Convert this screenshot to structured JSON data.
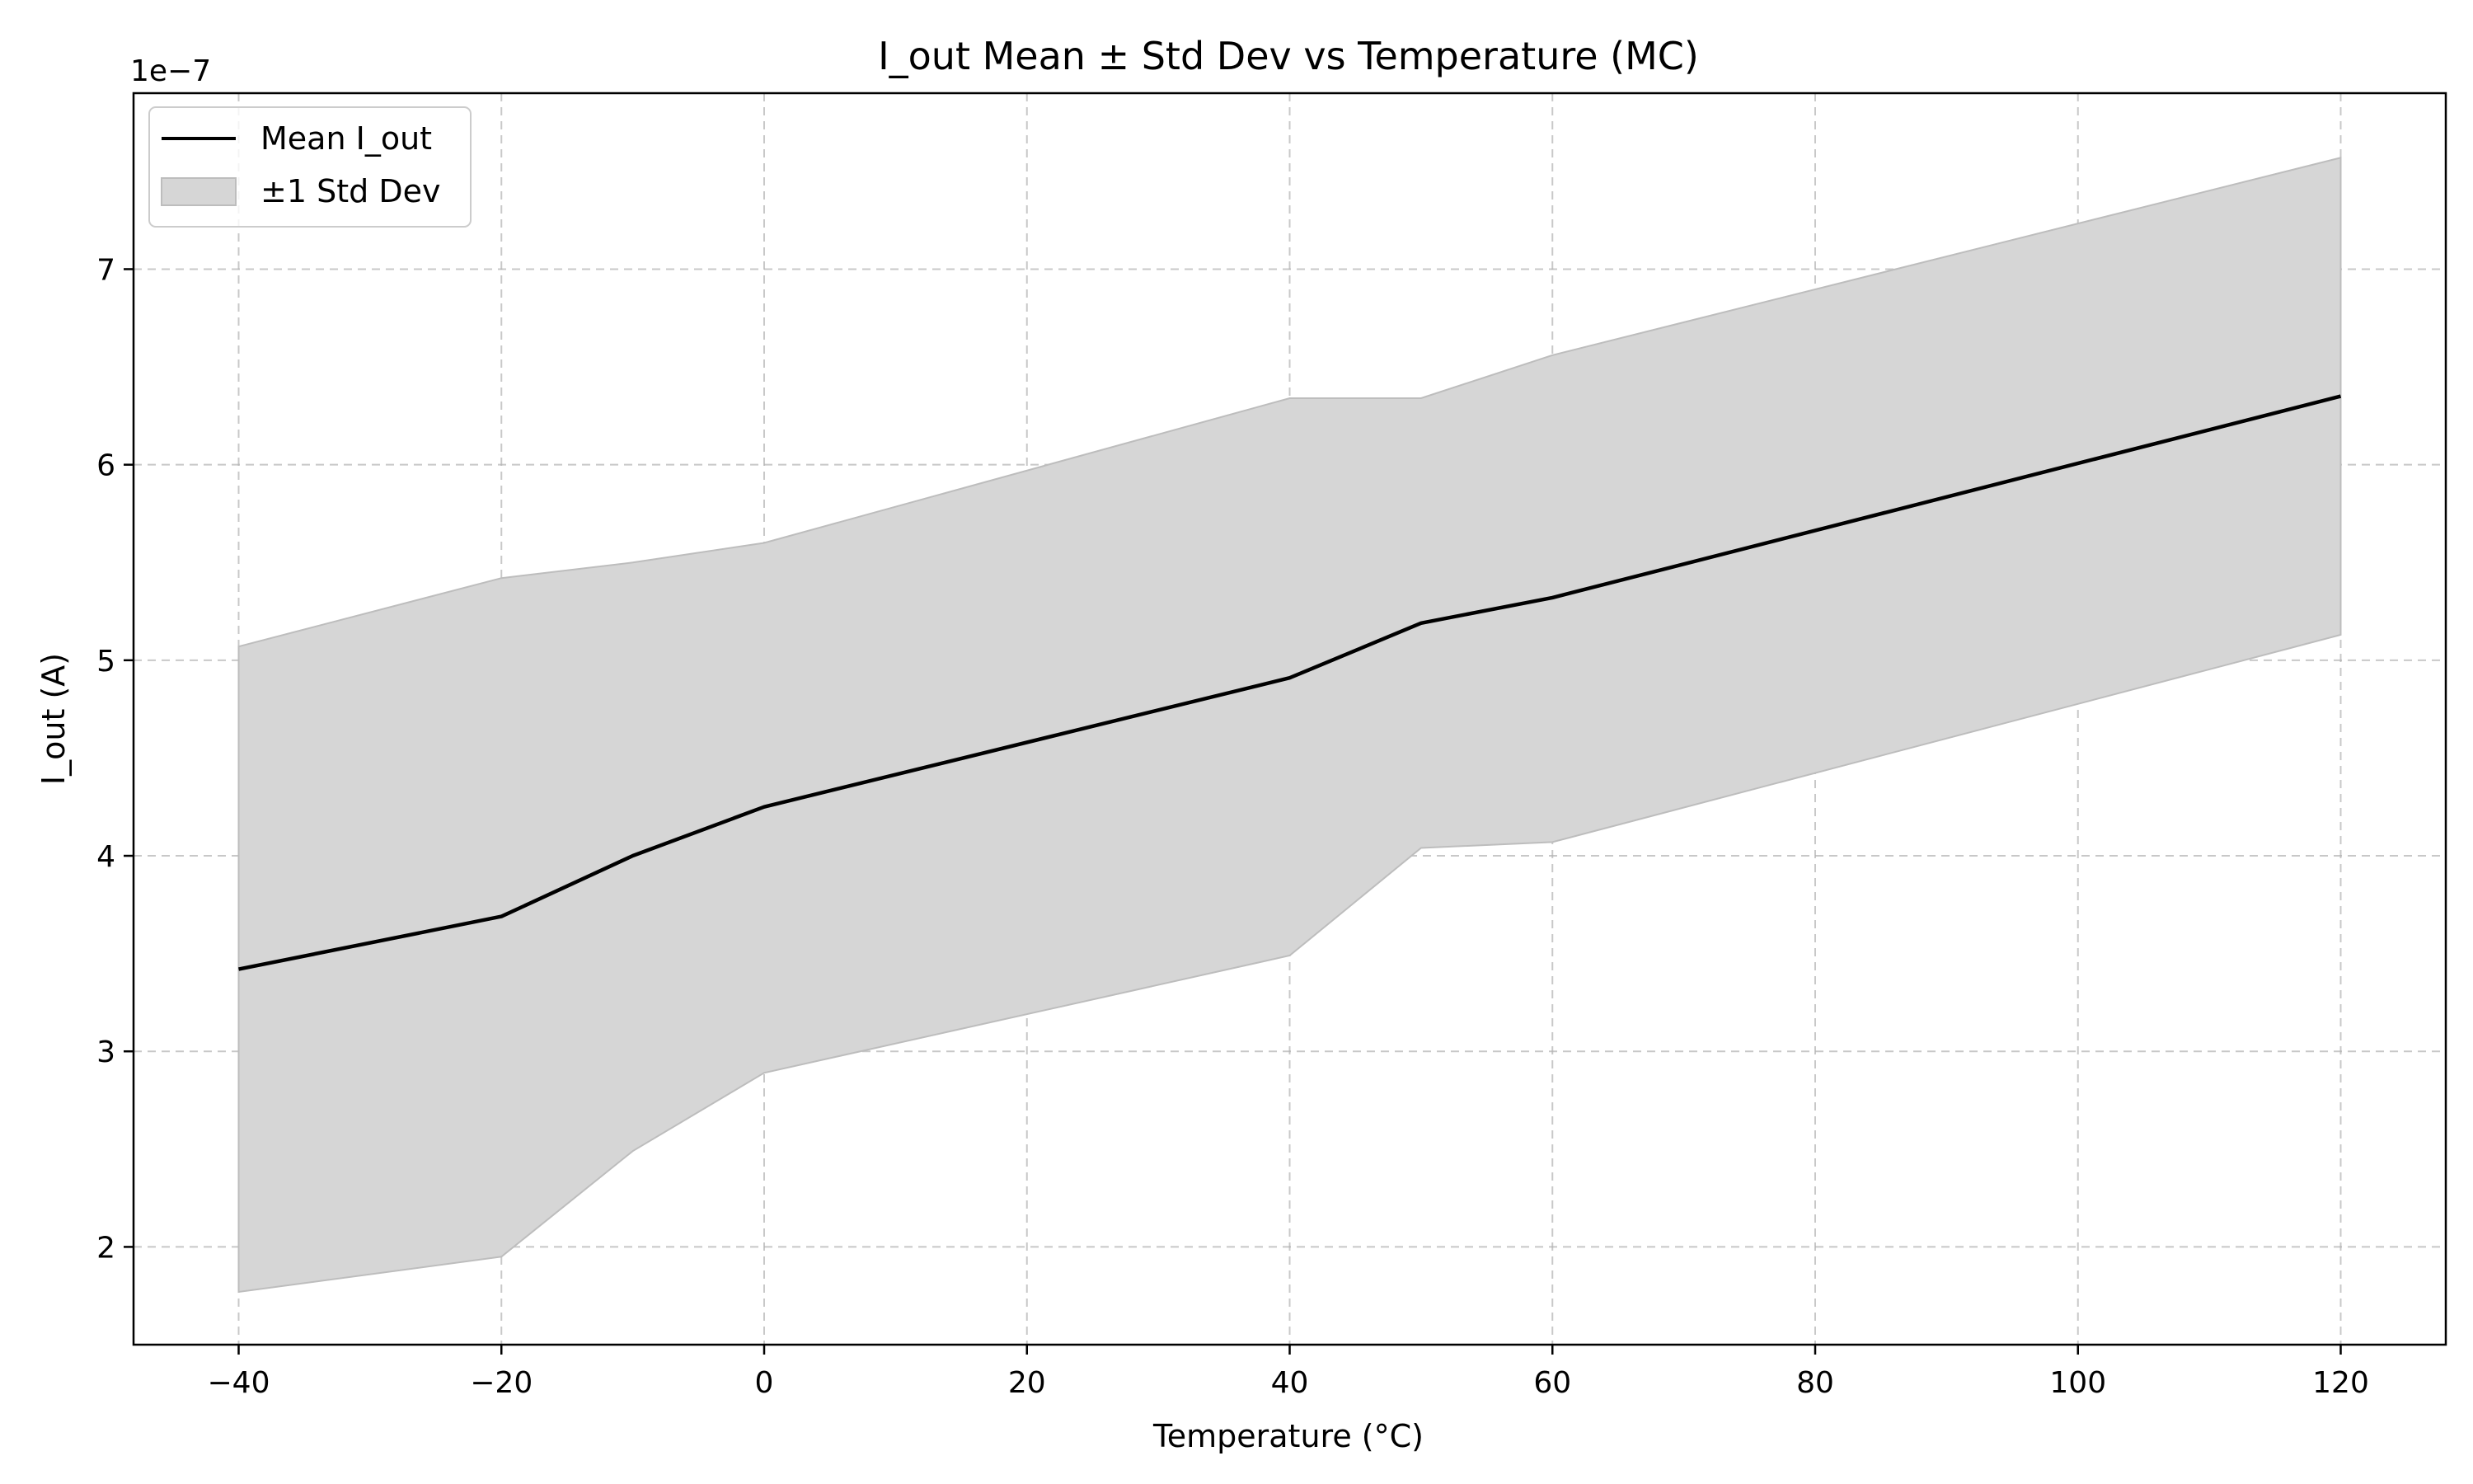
{
  "chart_data": {
    "type": "area",
    "title": "I_out Mean ± Std Dev vs Temperature (MC)",
    "xlabel": "Temperature (°C)",
    "ylabel": "I_out (A)",
    "y_offset_label": "1e−7",
    "y_scale_factor": 1e-07,
    "x": [
      -40,
      -20,
      -10,
      0,
      40,
      50,
      60,
      120
    ],
    "series": [
      {
        "name": "Mean I_out",
        "kind": "line",
        "color": "#000000",
        "values": [
          3.42,
          3.69,
          4.0,
          4.25,
          4.91,
          5.19,
          5.32,
          6.35
        ]
      },
      {
        "name": "±1 Std Dev",
        "kind": "band",
        "color": "#d6d6d6",
        "lower": [
          1.77,
          1.95,
          2.49,
          2.89,
          3.49,
          4.04,
          4.07,
          5.13
        ],
        "upper": [
          5.07,
          5.42,
          5.5,
          5.6,
          6.34,
          6.34,
          6.56,
          7.57
        ]
      }
    ],
    "xlim": [
      -48,
      128
    ],
    "ylim": [
      1.5,
      7.9
    ],
    "x_ticks": [
      -40,
      -20,
      0,
      20,
      40,
      60,
      80,
      100,
      120
    ],
    "x_tick_labels": [
      "−40",
      "−20",
      "0",
      "20",
      "40",
      "60",
      "80",
      "100",
      "120"
    ],
    "y_ticks": [
      2,
      3,
      4,
      5,
      6,
      7
    ],
    "y_tick_labels": [
      "2",
      "3",
      "4",
      "5",
      "6",
      "7"
    ],
    "grid": true,
    "legend_position": "top-left"
  }
}
